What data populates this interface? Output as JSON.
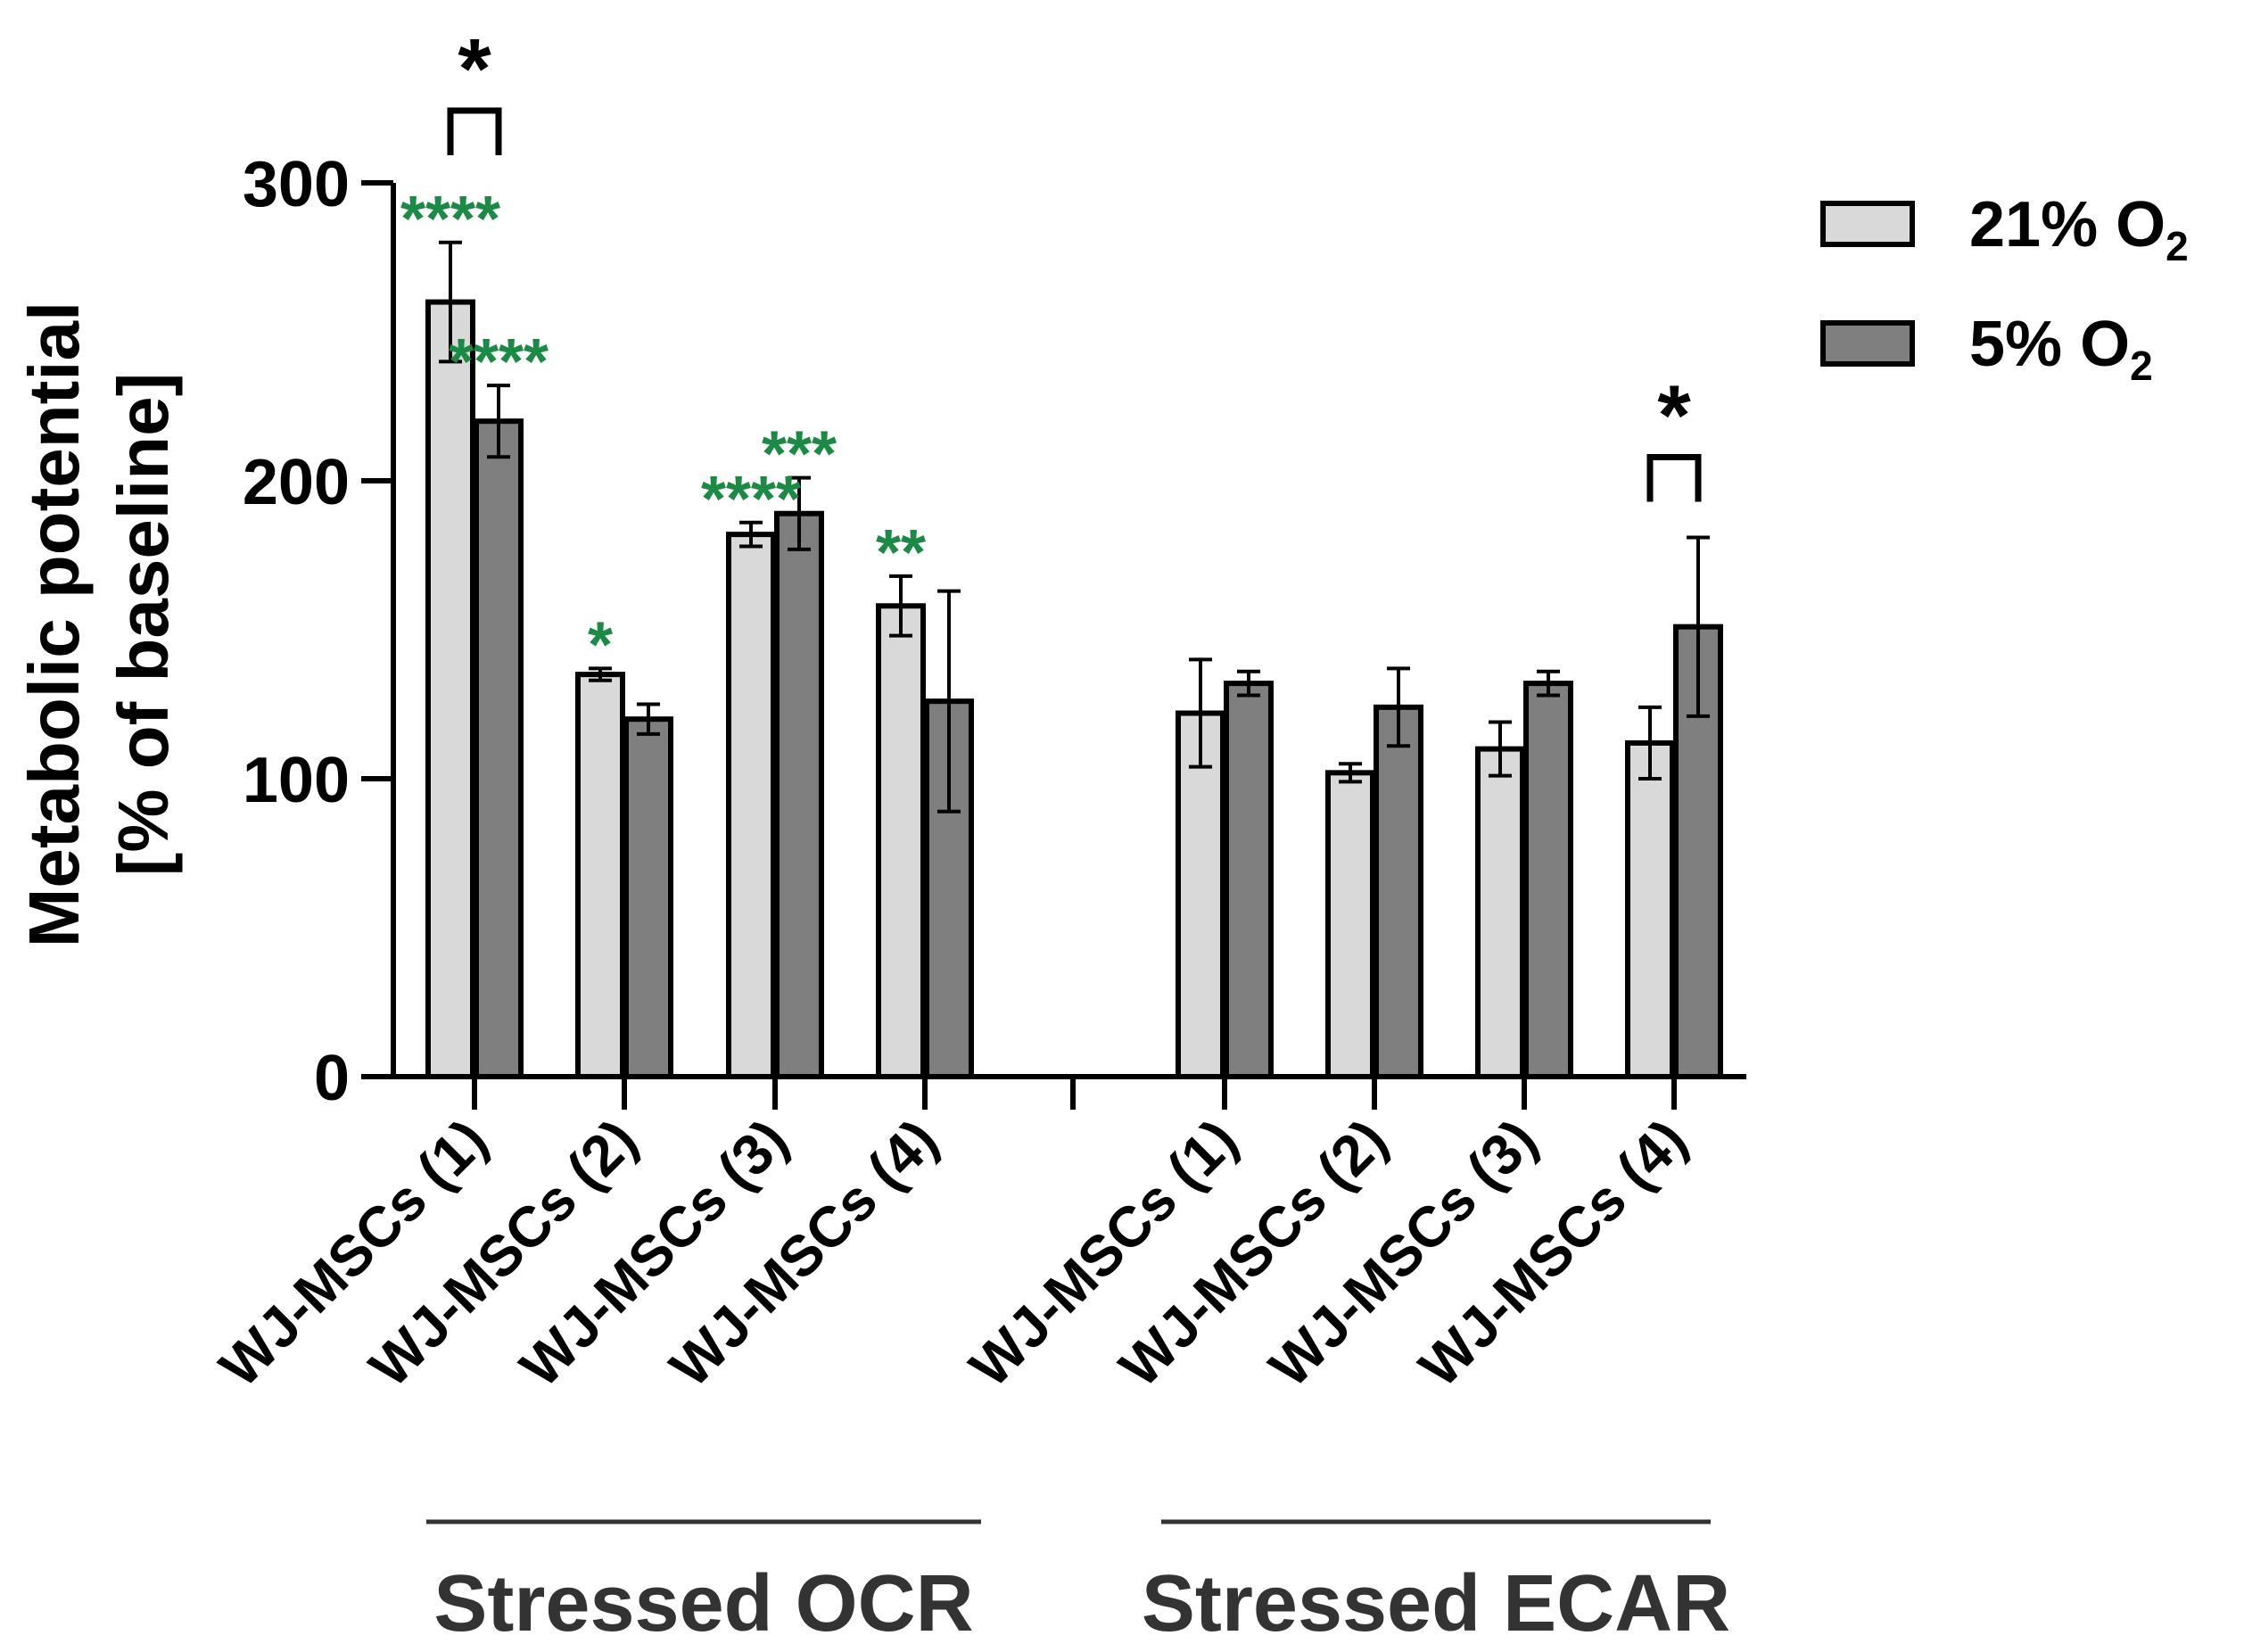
{
  "chart_data": {
    "type": "bar",
    "ylabel_line1": "Metabolic potential",
    "ylabel_line2": "[% of baseline]",
    "ylim": [
      0,
      300
    ],
    "yticks": [
      "0",
      "100",
      "200",
      "300"
    ],
    "categories": [
      "WJ-MSCs (1)",
      "WJ-MSCs (2)",
      "WJ-MSCs (3)",
      "WJ-MSCs (4)",
      "WJ-MSCs (1)",
      "WJ-MSCs (2)",
      "WJ-MSCs (3)",
      "WJ-MSCs (4)"
    ],
    "groups": [
      {
        "label": "Stressed OCR",
        "category_indices": [
          0,
          1,
          2,
          3
        ]
      },
      {
        "label": "Stressed ECAR",
        "category_indices": [
          4,
          5,
          6,
          7
        ]
      }
    ],
    "series": [
      {
        "name": "21% O",
        "subscript": "2",
        "color": "#d9d9d9",
        "values": [
          260,
          135,
          182,
          158,
          122,
          102,
          110,
          112
        ],
        "errors": [
          20,
          2,
          4,
          10,
          18,
          3,
          9,
          12
        ]
      },
      {
        "name": "5% O",
        "subscript": "2",
        "color": "#7f7f7f",
        "values": [
          220,
          120,
          189,
          126,
          132,
          124,
          132,
          151
        ],
        "errors": [
          12,
          5,
          12,
          37,
          4,
          13,
          4,
          30
        ]
      }
    ],
    "significance_vs_baseline": [
      {
        "category": 0,
        "series": 0,
        "label": "****",
        "color": "#1a8a45"
      },
      {
        "category": 0,
        "series": 1,
        "label": "****",
        "color": "#1a8a45"
      },
      {
        "category": 1,
        "series": 0,
        "label": "*",
        "color": "#1a8a45"
      },
      {
        "category": 2,
        "series": 0,
        "label": "****",
        "color": "#1a8a45"
      },
      {
        "category": 2,
        "series": 1,
        "label": "***",
        "color": "#1a8a45"
      },
      {
        "category": 3,
        "series": 0,
        "label": "**",
        "color": "#1a8a45"
      }
    ],
    "significance_between_series": [
      {
        "category": 0,
        "label": "*",
        "color": "#000000"
      },
      {
        "category": 7,
        "label": "*",
        "color": "#000000"
      }
    ],
    "legend_position": "top-right"
  }
}
